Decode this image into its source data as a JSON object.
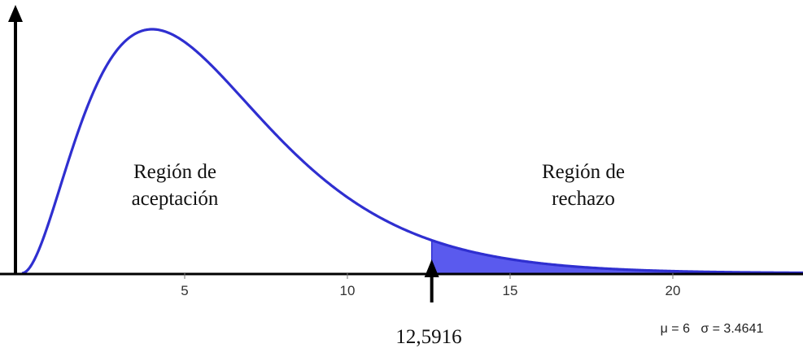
{
  "chart_data": {
    "type": "area",
    "distribution": "chi-square",
    "degrees_of_freedom": 6,
    "x_range": [
      0,
      24
    ],
    "x_ticks": [
      5,
      10,
      15,
      20
    ],
    "x_tick_labels": [
      "5",
      "10",
      "15",
      "20"
    ],
    "critical_value": 12.5916,
    "critical_value_label": "12,5916",
    "shaded_region": "right tail (x ≥ 12.5916)",
    "regions": [
      {
        "line1": "Región de",
        "line2": "aceptación"
      },
      {
        "line1": "Región de",
        "line2": "rechazo"
      }
    ],
    "parameters_label": "μ = 6   σ = 3.4641",
    "mean": 6,
    "std_dev": 3.4641,
    "grid": false,
    "colors": {
      "curve": "#2f2fd0",
      "fill": "#5a5aee",
      "axes": "#000000"
    }
  }
}
